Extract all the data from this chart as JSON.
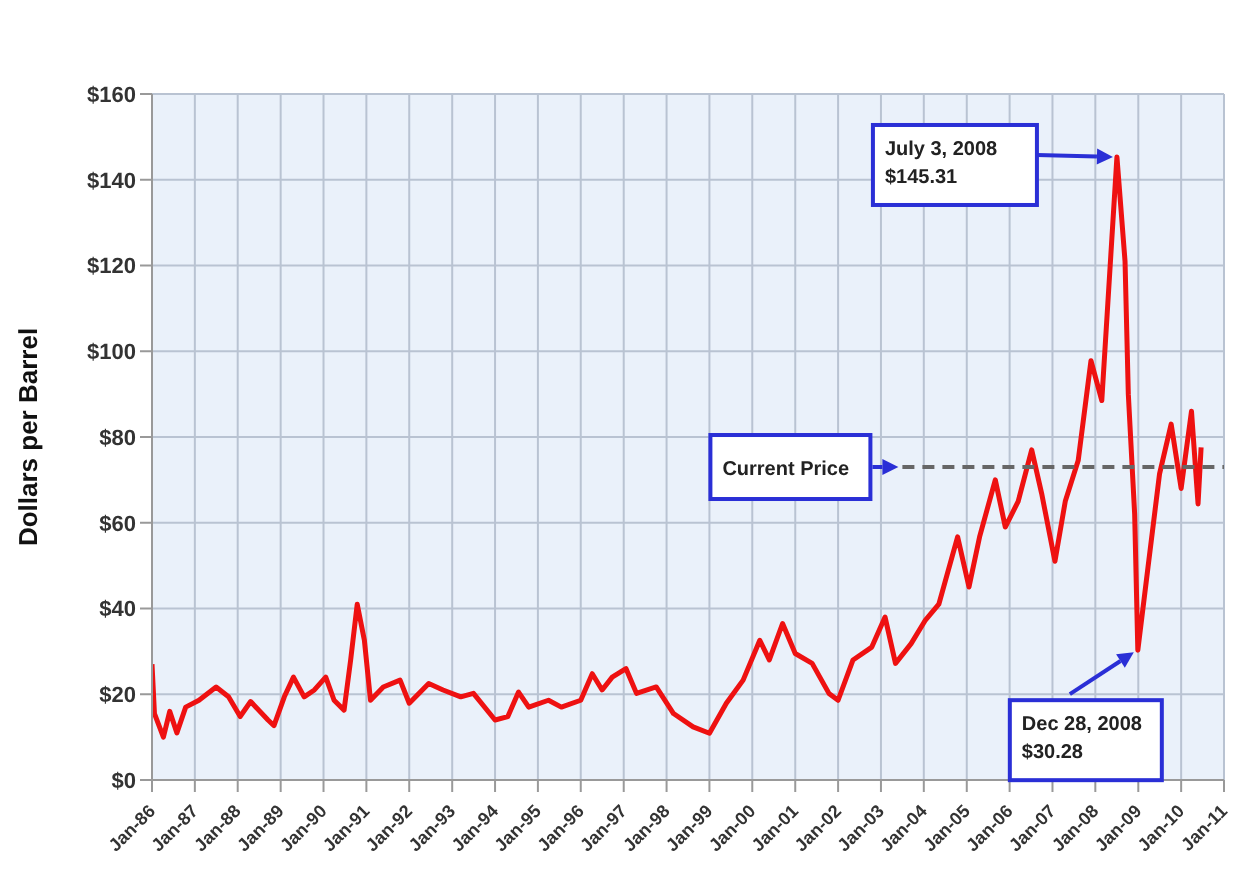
{
  "chart_data": {
    "type": "line",
    "ylabel": "Dollars per Barrel",
    "xlim": [
      "1986-01",
      "2011-01"
    ],
    "xticks": [
      {
        "value": "1986-01",
        "label": "Jan-86"
      },
      {
        "value": "1987-01",
        "label": "Jan-87"
      },
      {
        "value": "1988-01",
        "label": "Jan-88"
      },
      {
        "value": "1989-01",
        "label": "Jan-89"
      },
      {
        "value": "1990-01",
        "label": "Jan-90"
      },
      {
        "value": "1991-01",
        "label": "Jan-91"
      },
      {
        "value": "1992-01",
        "label": "Jan-92"
      },
      {
        "value": "1993-01",
        "label": "Jan-93"
      },
      {
        "value": "1994-01",
        "label": "Jan-94"
      },
      {
        "value": "1995-01",
        "label": "Jan-95"
      },
      {
        "value": "1996-01",
        "label": "Jan-96"
      },
      {
        "value": "1997-01",
        "label": "Jan-97"
      },
      {
        "value": "1998-01",
        "label": "Jan-98"
      },
      {
        "value": "1999-01",
        "label": "Jan-99"
      },
      {
        "value": "2000-01",
        "label": "Jan-00"
      },
      {
        "value": "2001-01",
        "label": "Jan-01"
      },
      {
        "value": "2002-01",
        "label": "Jan-02"
      },
      {
        "value": "2003-01",
        "label": "Jan-03"
      },
      {
        "value": "2004-01",
        "label": "Jan-04"
      },
      {
        "value": "2005-01",
        "label": "Jan-05"
      },
      {
        "value": "2006-01",
        "label": "Jan-06"
      },
      {
        "value": "2007-01",
        "label": "Jan-07"
      },
      {
        "value": "2008-01",
        "label": "Jan-08"
      },
      {
        "value": "2009-01",
        "label": "Jan-09"
      },
      {
        "value": "2010-01",
        "label": "Jan-10"
      },
      {
        "value": "2011-01",
        "label": "Jan-11"
      }
    ],
    "ylim": [
      0,
      160
    ],
    "yticks": [
      {
        "value": 0,
        "label": "$0"
      },
      {
        "value": 20,
        "label": "$20"
      },
      {
        "value": 40,
        "label": "$40"
      },
      {
        "value": 60,
        "label": "$60"
      },
      {
        "value": 80,
        "label": "$80"
      },
      {
        "value": 100,
        "label": "$100"
      },
      {
        "value": 120,
        "label": "$120"
      },
      {
        "value": 140,
        "label": "$140"
      },
      {
        "value": 160,
        "label": "$160"
      }
    ],
    "grid": true,
    "marker": "none",
    "line_style": "solid",
    "x": [
      "1986-01-01",
      "1986-01-22",
      "1986-04-08",
      "1986-06-01",
      "1986-08-01",
      "1986-10-15",
      "1987-02-05",
      "1987-07-01",
      "1987-10-15",
      "1988-01-22",
      "1988-04-20",
      "1988-09-15",
      "1988-11-05",
      "1989-02-01",
      "1989-04-20",
      "1989-07-20",
      "1989-10-15",
      "1990-01-20",
      "1990-04-01",
      "1990-06-25",
      "1990-08-20",
      "1990-10-15",
      "1990-12-15",
      "1991-02-05",
      "1991-05-25",
      "1991-10-15",
      "1992-01-01",
      "1992-06-15",
      "1992-10-15",
      "1993-03-15",
      "1993-07-01",
      "1994-01-01",
      "1994-04-20",
      "1994-07-20",
      "1994-10-15",
      "1995-04-01",
      "1995-07-20",
      "1996-01-01",
      "1996-04-08",
      "1996-07-01",
      "1996-09-25",
      "1997-01-20",
      "1997-04-20",
      "1997-10-05",
      "1998-03-01",
      "1998-08-15",
      "1999-01-01",
      "1999-05-25",
      "1999-10-15",
      "2000-03-05",
      "2000-05-25",
      "2000-09-15",
      "2001-01-01",
      "2001-05-25",
      "2001-10-15",
      "2002-01-01",
      "2002-05-08",
      "2002-10-15",
      "2003-02-05",
      "2003-05-05",
      "2003-09-15",
      "2004-01-15",
      "2004-05-08",
      "2004-10-15",
      "2005-01-20",
      "2005-04-20",
      "2005-09-01",
      "2005-11-25",
      "2006-03-15",
      "2006-07-08",
      "2006-10-01",
      "2007-01-22",
      "2007-04-20",
      "2007-08-08",
      "2007-11-25",
      "2008-02-25",
      "2008-07-03",
      "2008-09-10",
      "2008-10-08",
      "2008-12-01",
      "2008-12-28",
      "2009-03-25",
      "2009-07-01",
      "2009-10-08",
      "2010-01-01",
      "2010-03-30",
      "2010-05-25",
      "2010-06-20"
    ],
    "series": [
      {
        "color": "#ee1111",
        "values": [
          27,
          15.5,
          10,
          16,
          11,
          17,
          18.6,
          21.7,
          19.4,
          14.8,
          18.3,
          14,
          12.7,
          19.4,
          24,
          19.4,
          21,
          24,
          18.6,
          16.3,
          28,
          41,
          32.6,
          18.6,
          21.7,
          23.3,
          17.9,
          22.5,
          21,
          19.4,
          20.2,
          14,
          14.8,
          20.5,
          17,
          18.6,
          17,
          18.6,
          24.8,
          21,
          24,
          26,
          20.2,
          21.7,
          15.5,
          12.4,
          10.9,
          17.9,
          23.3,
          32.6,
          28,
          36.5,
          29.5,
          27.2,
          20.2,
          18.6,
          28,
          31,
          38,
          27.2,
          31.8,
          37.3,
          41,
          56.7,
          45,
          56.7,
          70,
          59,
          65,
          77,
          66.8,
          51,
          65,
          74.5,
          97.8,
          88.5,
          145.31,
          121,
          90,
          62,
          30.28,
          49.7,
          71.4,
          83,
          68,
          86,
          64.4,
          77.6
        ]
      }
    ],
    "ref_lines": [
      {
        "axis": "y",
        "value": 73,
        "label": "Current Price",
        "color": "#666666",
        "line_style": "dashed"
      }
    ],
    "annotations": [
      "July 3, 2008\n$145.31",
      "Dec 28, 2008\n$30.28"
    ]
  }
}
